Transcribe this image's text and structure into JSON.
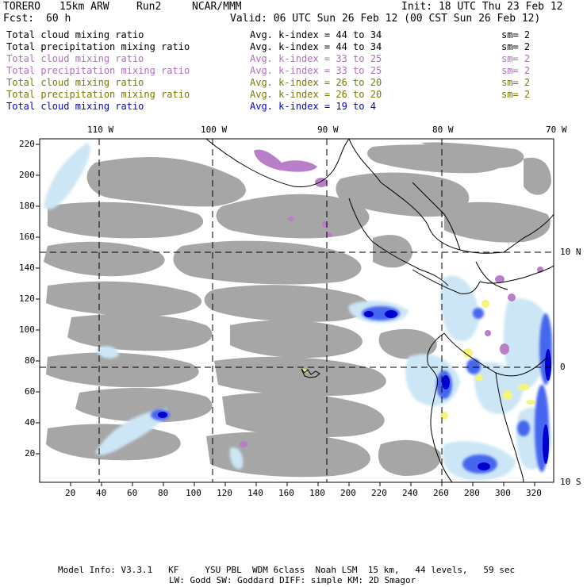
{
  "header": {
    "model": "TORERO",
    "res": "15km ARW",
    "run": "Run2",
    "org": "NCAR/MMM",
    "init": "Init: 18 UTC Thu 23 Feb 12",
    "fcst_label": "Fcst:",
    "fcst_value": "60 h",
    "valid": "Valid: 06 UTC Sun 26 Feb 12 (00 CST Sun 26 Feb 12)"
  },
  "legend": [
    {
      "field": "Total cloud mixing ratio",
      "stat": "Avg. k-index = 44 to 34",
      "sm": "sm= 2",
      "color": "#000000"
    },
    {
      "field": "Total precipitation mixing ratio",
      "stat": "Avg. k-index = 44 to 34",
      "sm": "sm= 2",
      "color": "#000000"
    },
    {
      "field": "Total cloud mixing ratio",
      "stat": "Avg. k-index = 33 to 25",
      "sm": "sm= 2",
      "color": "#b06fbe"
    },
    {
      "field": "Total precipitation mixing ratio",
      "stat": "Avg. k-index = 33 to 25",
      "sm": "sm= 2",
      "color": "#b06fbe"
    },
    {
      "field": "Total cloud mixing ratio",
      "stat": "Avg. k-index = 26 to 20",
      "sm": "sm= 2",
      "color": "#7a7a00"
    },
    {
      "field": "Total precipitation mixing ratio",
      "stat": "Avg. k-index = 26 to 20",
      "sm": "sm= 2",
      "color": "#7a7a00"
    },
    {
      "field": "Total cloud mixing ratio",
      "stat": "Avg. k-index = 19 to 4",
      "sm": "",
      "color": "#0000dd"
    }
  ],
  "top_axis": [
    "110 W",
    "100 W",
    "90 W",
    "80 W",
    "70 W"
  ],
  "right_axis": [
    "10 N",
    "0",
    "10 S"
  ],
  "left_axis": [
    "220",
    "200",
    "180",
    "160",
    "140",
    "120",
    "100",
    "80",
    "60",
    "40",
    "20"
  ],
  "bottom_axis": [
    "20",
    "40",
    "60",
    "80",
    "100",
    "120",
    "140",
    "160",
    "180",
    "200",
    "220",
    "240",
    "260",
    "280",
    "300",
    "320"
  ],
  "footer": {
    "line1": "Model Info: V3.3.1   KF     YSU PBL  WDM 6class  Noah LSM  15 km,   44 levels,   59 sec",
    "line2": "LW: Godd SW: Goddard DIFF: simple KM: 2D Smagor"
  },
  "colors": {
    "cloud_gray": "#a6a6a6",
    "light_blue": "#cce6f5",
    "mid_blue": "#4466ee",
    "dark_blue": "#0000cc",
    "purple": "#b87fc8",
    "yellow": "#f5f57a"
  }
}
